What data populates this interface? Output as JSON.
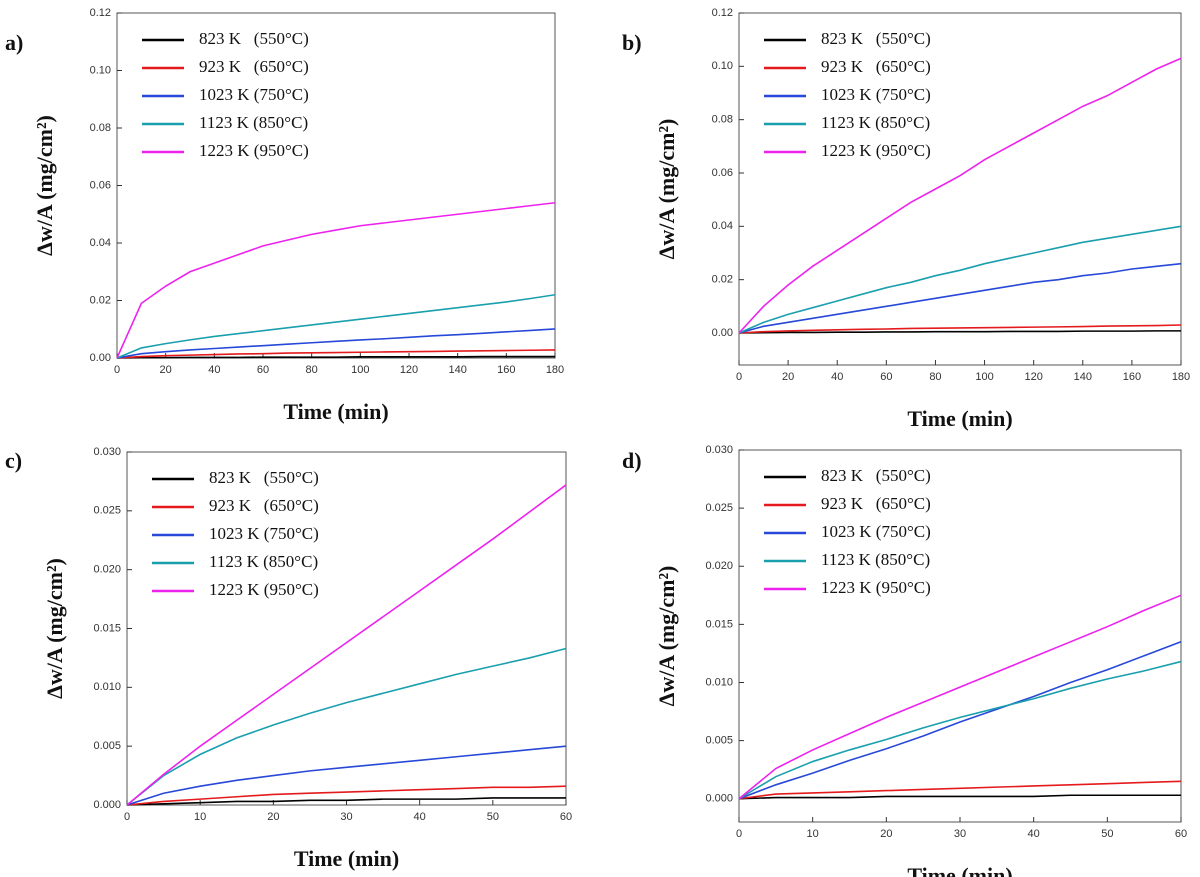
{
  "chart_data": [
    {
      "type": "line",
      "panel_label": "a)",
      "x_label": "Time (min)",
      "y_label": "Δw/A (mg/cm²)",
      "x": [
        0,
        10,
        20,
        30,
        40,
        50,
        60,
        70,
        80,
        90,
        100,
        110,
        120,
        130,
        140,
        150,
        160,
        170,
        180
      ],
      "xlim": [
        0,
        180
      ],
      "xticks": [
        0,
        20,
        40,
        60,
        80,
        100,
        120,
        140,
        160,
        180
      ],
      "ylim": [
        0,
        0.12
      ],
      "yticks": [
        {
          "value": 0,
          "label": "0.00"
        },
        {
          "value": 0.02,
          "label": "0.02"
        },
        {
          "value": 0.04,
          "label": "0.04"
        },
        {
          "value": 0.06,
          "label": "0.06"
        },
        {
          "value": 0.08,
          "label": "0.08"
        },
        {
          "value": 0.1,
          "label": "0.10"
        },
        {
          "value": 0.12,
          "label": "0.12"
        }
      ],
      "series": [
        {
          "name": "823 K   (550°C)",
          "color": "#000000",
          "values": [
            0,
            0.0001,
            0.0001,
            0.0002,
            0.0002,
            0.0002,
            0.0003,
            0.0003,
            0.0003,
            0.0003,
            0.0004,
            0.0004,
            0.0004,
            0.0004,
            0.0004,
            0.0005,
            0.0005,
            0.0005,
            0.0005
          ]
        },
        {
          "name": "923 K   (650°C)",
          "color": "#e41a1c",
          "values": [
            0,
            0.0005,
            0.0008,
            0.001,
            0.0012,
            0.0014,
            0.0015,
            0.0017,
            0.0018,
            0.0019,
            0.002,
            0.0021,
            0.0022,
            0.0023,
            0.0024,
            0.0025,
            0.0026,
            0.0027,
            0.0028
          ]
        },
        {
          "name": "1023 K (750°C)",
          "color": "#2748d8",
          "values": [
            0,
            0.0015,
            0.0022,
            0.0028,
            0.0033,
            0.0038,
            0.0043,
            0.0048,
            0.0053,
            0.0058,
            0.0063,
            0.0067,
            0.0072,
            0.0077,
            0.0081,
            0.0086,
            0.0091,
            0.0096,
            0.0101
          ]
        },
        {
          "name": "1123 K (850°C)",
          "color": "#1a9fae",
          "values": [
            0,
            0.0035,
            0.005,
            0.0063,
            0.0075,
            0.0085,
            0.0095,
            0.0105,
            0.0115,
            0.0125,
            0.0135,
            0.0145,
            0.0155,
            0.0165,
            0.0175,
            0.0185,
            0.0195,
            0.0207,
            0.022
          ]
        },
        {
          "name": "1223 K (950°C)",
          "color": "#ee22ee",
          "values": [
            0,
            0.019,
            0.025,
            0.03,
            0.033,
            0.036,
            0.039,
            0.041,
            0.043,
            0.0445,
            0.046,
            0.047,
            0.048,
            0.049,
            0.05,
            0.051,
            0.052,
            0.053,
            0.054
          ]
        }
      ]
    },
    {
      "type": "line",
      "panel_label": "b)",
      "x_label": "Time (min)",
      "y_label": "Δw/A (mg/cm²)",
      "x": [
        0,
        10,
        20,
        30,
        40,
        50,
        60,
        70,
        80,
        90,
        100,
        110,
        120,
        130,
        140,
        150,
        160,
        170,
        180
      ],
      "xlim": [
        0,
        180
      ],
      "xticks": [
        0,
        20,
        40,
        60,
        80,
        100,
        120,
        140,
        160,
        180
      ],
      "ylim": [
        -0.012,
        0.12
      ],
      "yticks": [
        {
          "value": 0,
          "label": "0.00"
        },
        {
          "value": 0.02,
          "label": "0.02"
        },
        {
          "value": 0.04,
          "label": "0.04"
        },
        {
          "value": 0.06,
          "label": "0.06"
        },
        {
          "value": 0.08,
          "label": "0.08"
        },
        {
          "value": 0.1,
          "label": "0.10"
        },
        {
          "value": 0.12,
          "label": "0.12"
        }
      ],
      "series": [
        {
          "name": "823 K   (550°C)",
          "color": "#000000",
          "values": [
            0,
            0.0001,
            0.0002,
            0.0002,
            0.0003,
            0.0003,
            0.0004,
            0.0004,
            0.0005,
            0.0005,
            0.0005,
            0.0006,
            0.0006,
            0.0006,
            0.0007,
            0.0007,
            0.0007,
            0.0008,
            0.0008
          ]
        },
        {
          "name": "923 K   (650°C)",
          "color": "#e41a1c",
          "values": [
            0,
            0.0005,
            0.0008,
            0.001,
            0.0012,
            0.0014,
            0.0015,
            0.0017,
            0.0018,
            0.0019,
            0.002,
            0.0021,
            0.0022,
            0.0023,
            0.0024,
            0.0026,
            0.0027,
            0.0028,
            0.003
          ]
        },
        {
          "name": "1023 K (750°C)",
          "color": "#2748d8",
          "values": [
            0,
            0.0025,
            0.004,
            0.0055,
            0.007,
            0.0085,
            0.01,
            0.0115,
            0.013,
            0.0145,
            0.016,
            0.0175,
            0.019,
            0.02,
            0.0215,
            0.0225,
            0.024,
            0.025,
            0.026
          ]
        },
        {
          "name": "1123 K (850°C)",
          "color": "#1a9fae",
          "values": [
            0,
            0.004,
            0.007,
            0.0095,
            0.012,
            0.0145,
            0.017,
            0.019,
            0.0215,
            0.0235,
            0.026,
            0.028,
            0.03,
            0.032,
            0.034,
            0.0355,
            0.037,
            0.0385,
            0.04
          ]
        },
        {
          "name": "1223 K (950°C)",
          "color": "#ee22ee",
          "values": [
            0,
            0.01,
            0.018,
            0.025,
            0.031,
            0.037,
            0.043,
            0.049,
            0.054,
            0.059,
            0.065,
            0.07,
            0.075,
            0.08,
            0.085,
            0.089,
            0.094,
            0.099,
            0.103
          ]
        }
      ]
    },
    {
      "type": "line",
      "panel_label": "c)",
      "x_label": "Time (min)",
      "y_label": "Δw/A (mg/cm²)",
      "x": [
        0,
        5,
        10,
        15,
        20,
        25,
        30,
        35,
        40,
        45,
        50,
        55,
        60
      ],
      "xlim": [
        0,
        60
      ],
      "xticks": [
        0,
        10,
        20,
        30,
        40,
        50,
        60
      ],
      "ylim": [
        0,
        0.03
      ],
      "yticks": [
        {
          "value": 0,
          "label": "0.000"
        },
        {
          "value": 0.005,
          "label": "0.005"
        },
        {
          "value": 0.01,
          "label": "0.010"
        },
        {
          "value": 0.015,
          "label": "0.015"
        },
        {
          "value": 0.02,
          "label": "0.020"
        },
        {
          "value": 0.025,
          "label": "0.025"
        },
        {
          "value": 0.03,
          "label": "0.030"
        }
      ],
      "series": [
        {
          "name": "823 K   (550°C)",
          "color": "#000000",
          "values": [
            0,
            0.0001,
            0.0002,
            0.0003,
            0.0003,
            0.0004,
            0.0004,
            0.0005,
            0.0005,
            0.0005,
            0.0006,
            0.0006,
            0.0006
          ]
        },
        {
          "name": "923 K   (650°C)",
          "color": "#e41a1c",
          "values": [
            0,
            0.0003,
            0.0005,
            0.0007,
            0.0009,
            0.001,
            0.0011,
            0.0012,
            0.0013,
            0.0014,
            0.0015,
            0.0015,
            0.0016
          ]
        },
        {
          "name": "1023 K (750°C)",
          "color": "#2748d8",
          "values": [
            0,
            0.001,
            0.0016,
            0.0021,
            0.0025,
            0.0029,
            0.0032,
            0.0035,
            0.0038,
            0.0041,
            0.0044,
            0.0047,
            0.005
          ]
        },
        {
          "name": "1123 K (850°C)",
          "color": "#1a9fae",
          "values": [
            0,
            0.0025,
            0.0043,
            0.0057,
            0.0068,
            0.0078,
            0.0087,
            0.0095,
            0.0103,
            0.0111,
            0.0118,
            0.0125,
            0.0133
          ]
        },
        {
          "name": "1223 K (950°C)",
          "color": "#ee22ee",
          "values": [
            0,
            0.0026,
            0.005,
            0.0072,
            0.0094,
            0.0116,
            0.0138,
            0.016,
            0.0182,
            0.0204,
            0.0226,
            0.0249,
            0.0272
          ]
        }
      ]
    },
    {
      "type": "line",
      "panel_label": "d)",
      "x_label": "Time (min)",
      "y_label": "Δw/A (mg/cm²)",
      "x": [
        0,
        5,
        10,
        15,
        20,
        25,
        30,
        35,
        40,
        45,
        50,
        55,
        60
      ],
      "xlim": [
        0,
        60
      ],
      "xticks": [
        0,
        10,
        20,
        30,
        40,
        50,
        60
      ],
      "ylim": [
        -0.002,
        0.03
      ],
      "yticks": [
        {
          "value": 0,
          "label": "0.000"
        },
        {
          "value": 0.005,
          "label": "0.005"
        },
        {
          "value": 0.01,
          "label": "0.010"
        },
        {
          "value": 0.015,
          "label": "0.015"
        },
        {
          "value": 0.02,
          "label": "0.020"
        },
        {
          "value": 0.025,
          "label": "0.025"
        },
        {
          "value": 0.03,
          "label": "0.030"
        }
      ],
      "series": [
        {
          "name": "823 K   (550°C)",
          "color": "#000000",
          "values": [
            0,
            0.0001,
            0.0001,
            0.0001,
            0.0002,
            0.0002,
            0.0002,
            0.0002,
            0.0002,
            0.0003,
            0.0003,
            0.0003,
            0.0003
          ]
        },
        {
          "name": "923 K   (650°C)",
          "color": "#e41a1c",
          "values": [
            0,
            0.0004,
            0.0005,
            0.0006,
            0.0007,
            0.0008,
            0.0009,
            0.001,
            0.0011,
            0.0012,
            0.0013,
            0.0014,
            0.0015
          ]
        },
        {
          "name": "1023 K (750°C)",
          "color": "#2748d8",
          "values": [
            0,
            0.0012,
            0.0022,
            0.0033,
            0.0043,
            0.0054,
            0.0066,
            0.0077,
            0.0088,
            0.01,
            0.0111,
            0.0123,
            0.0135
          ]
        },
        {
          "name": "1123 K (850°C)",
          "color": "#1a9fae",
          "values": [
            0,
            0.0019,
            0.0032,
            0.0042,
            0.0051,
            0.0061,
            0.007,
            0.0078,
            0.0086,
            0.0095,
            0.0103,
            0.011,
            0.0118
          ]
        },
        {
          "name": "1223 K (950°C)",
          "color": "#ee22ee",
          "values": [
            0,
            0.0026,
            0.0042,
            0.0056,
            0.007,
            0.0083,
            0.0096,
            0.0109,
            0.0122,
            0.0135,
            0.0148,
            0.0162,
            0.0175
          ]
        }
      ]
    }
  ]
}
